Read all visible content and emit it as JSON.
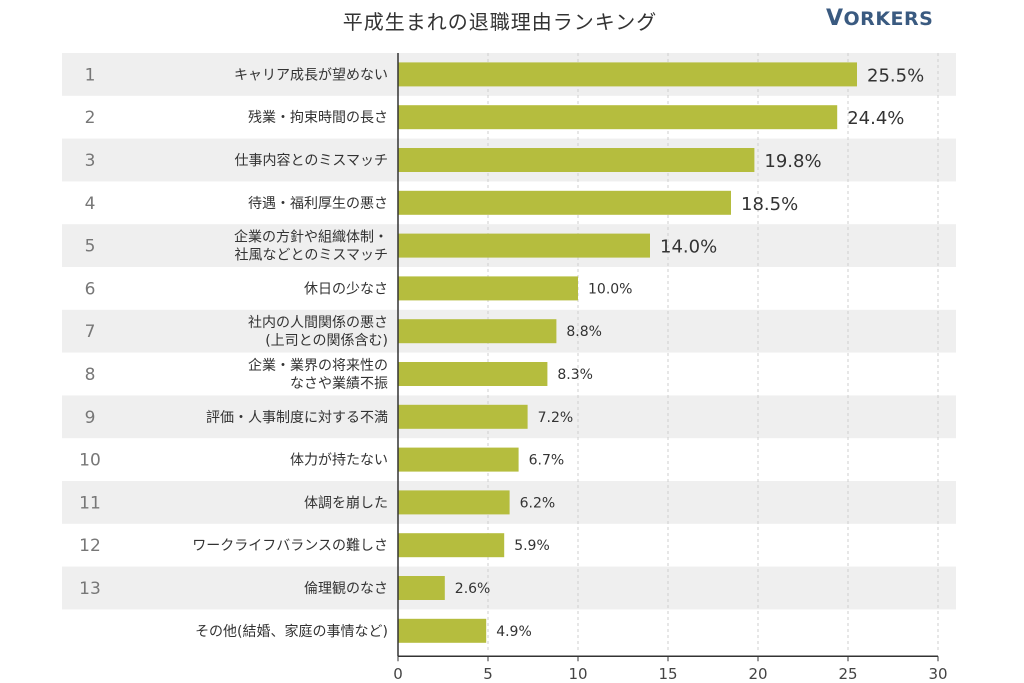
{
  "header": {
    "title": "平成生まれの退職理由ランキング",
    "logo_first": "V",
    "logo_rest": "ORKERS"
  },
  "colors": {
    "bar": "#b5bd3e",
    "band": "#efefef",
    "grid": "#cfcfcf",
    "axis": "#333333"
  },
  "chart_data": {
    "type": "bar",
    "orientation": "horizontal",
    "title": "平成生まれの退職理由ランキング",
    "xlim": [
      0,
      30
    ],
    "xticks": [
      0,
      5,
      10,
      15,
      20,
      25,
      30
    ],
    "grid": "vertical dashed",
    "ranks": [
      "1",
      "2",
      "3",
      "4",
      "5",
      "6",
      "7",
      "8",
      "9",
      "10",
      "11",
      "12",
      "13",
      ""
    ],
    "categories": [
      [
        "キャリア成長が望めない"
      ],
      [
        "残業・拘束時間の長さ"
      ],
      [
        "仕事内容とのミスマッチ"
      ],
      [
        "待遇・福利厚生の悪さ"
      ],
      [
        "企業の方針や組織体制・",
        "社風などとのミスマッチ"
      ],
      [
        "休日の少なさ"
      ],
      [
        "社内の人間関係の悪さ",
        "(上司との関係含む)"
      ],
      [
        "企業・業界の将来性の",
        "なさや業績不振"
      ],
      [
        "評価・人事制度に対する不満"
      ],
      [
        "体力が持たない"
      ],
      [
        "体調を崩した"
      ],
      [
        "ワークライフバランスの難しさ"
      ],
      [
        "倫理観のなさ"
      ],
      [
        "その他(結婚、家庭の事情など)"
      ]
    ],
    "values": [
      25.5,
      24.4,
      19.8,
      18.5,
      14.0,
      10.0,
      8.8,
      8.3,
      7.2,
      6.7,
      6.2,
      5.9,
      2.6,
      4.9
    ],
    "value_labels": [
      "25.5%",
      "24.4%",
      "19.8%",
      "18.5%",
      "14.0%",
      "10.0%",
      "8.8%",
      "8.3%",
      "7.2%",
      "6.7%",
      "6.2%",
      "5.9%",
      "2.6%",
      "4.9%"
    ]
  }
}
